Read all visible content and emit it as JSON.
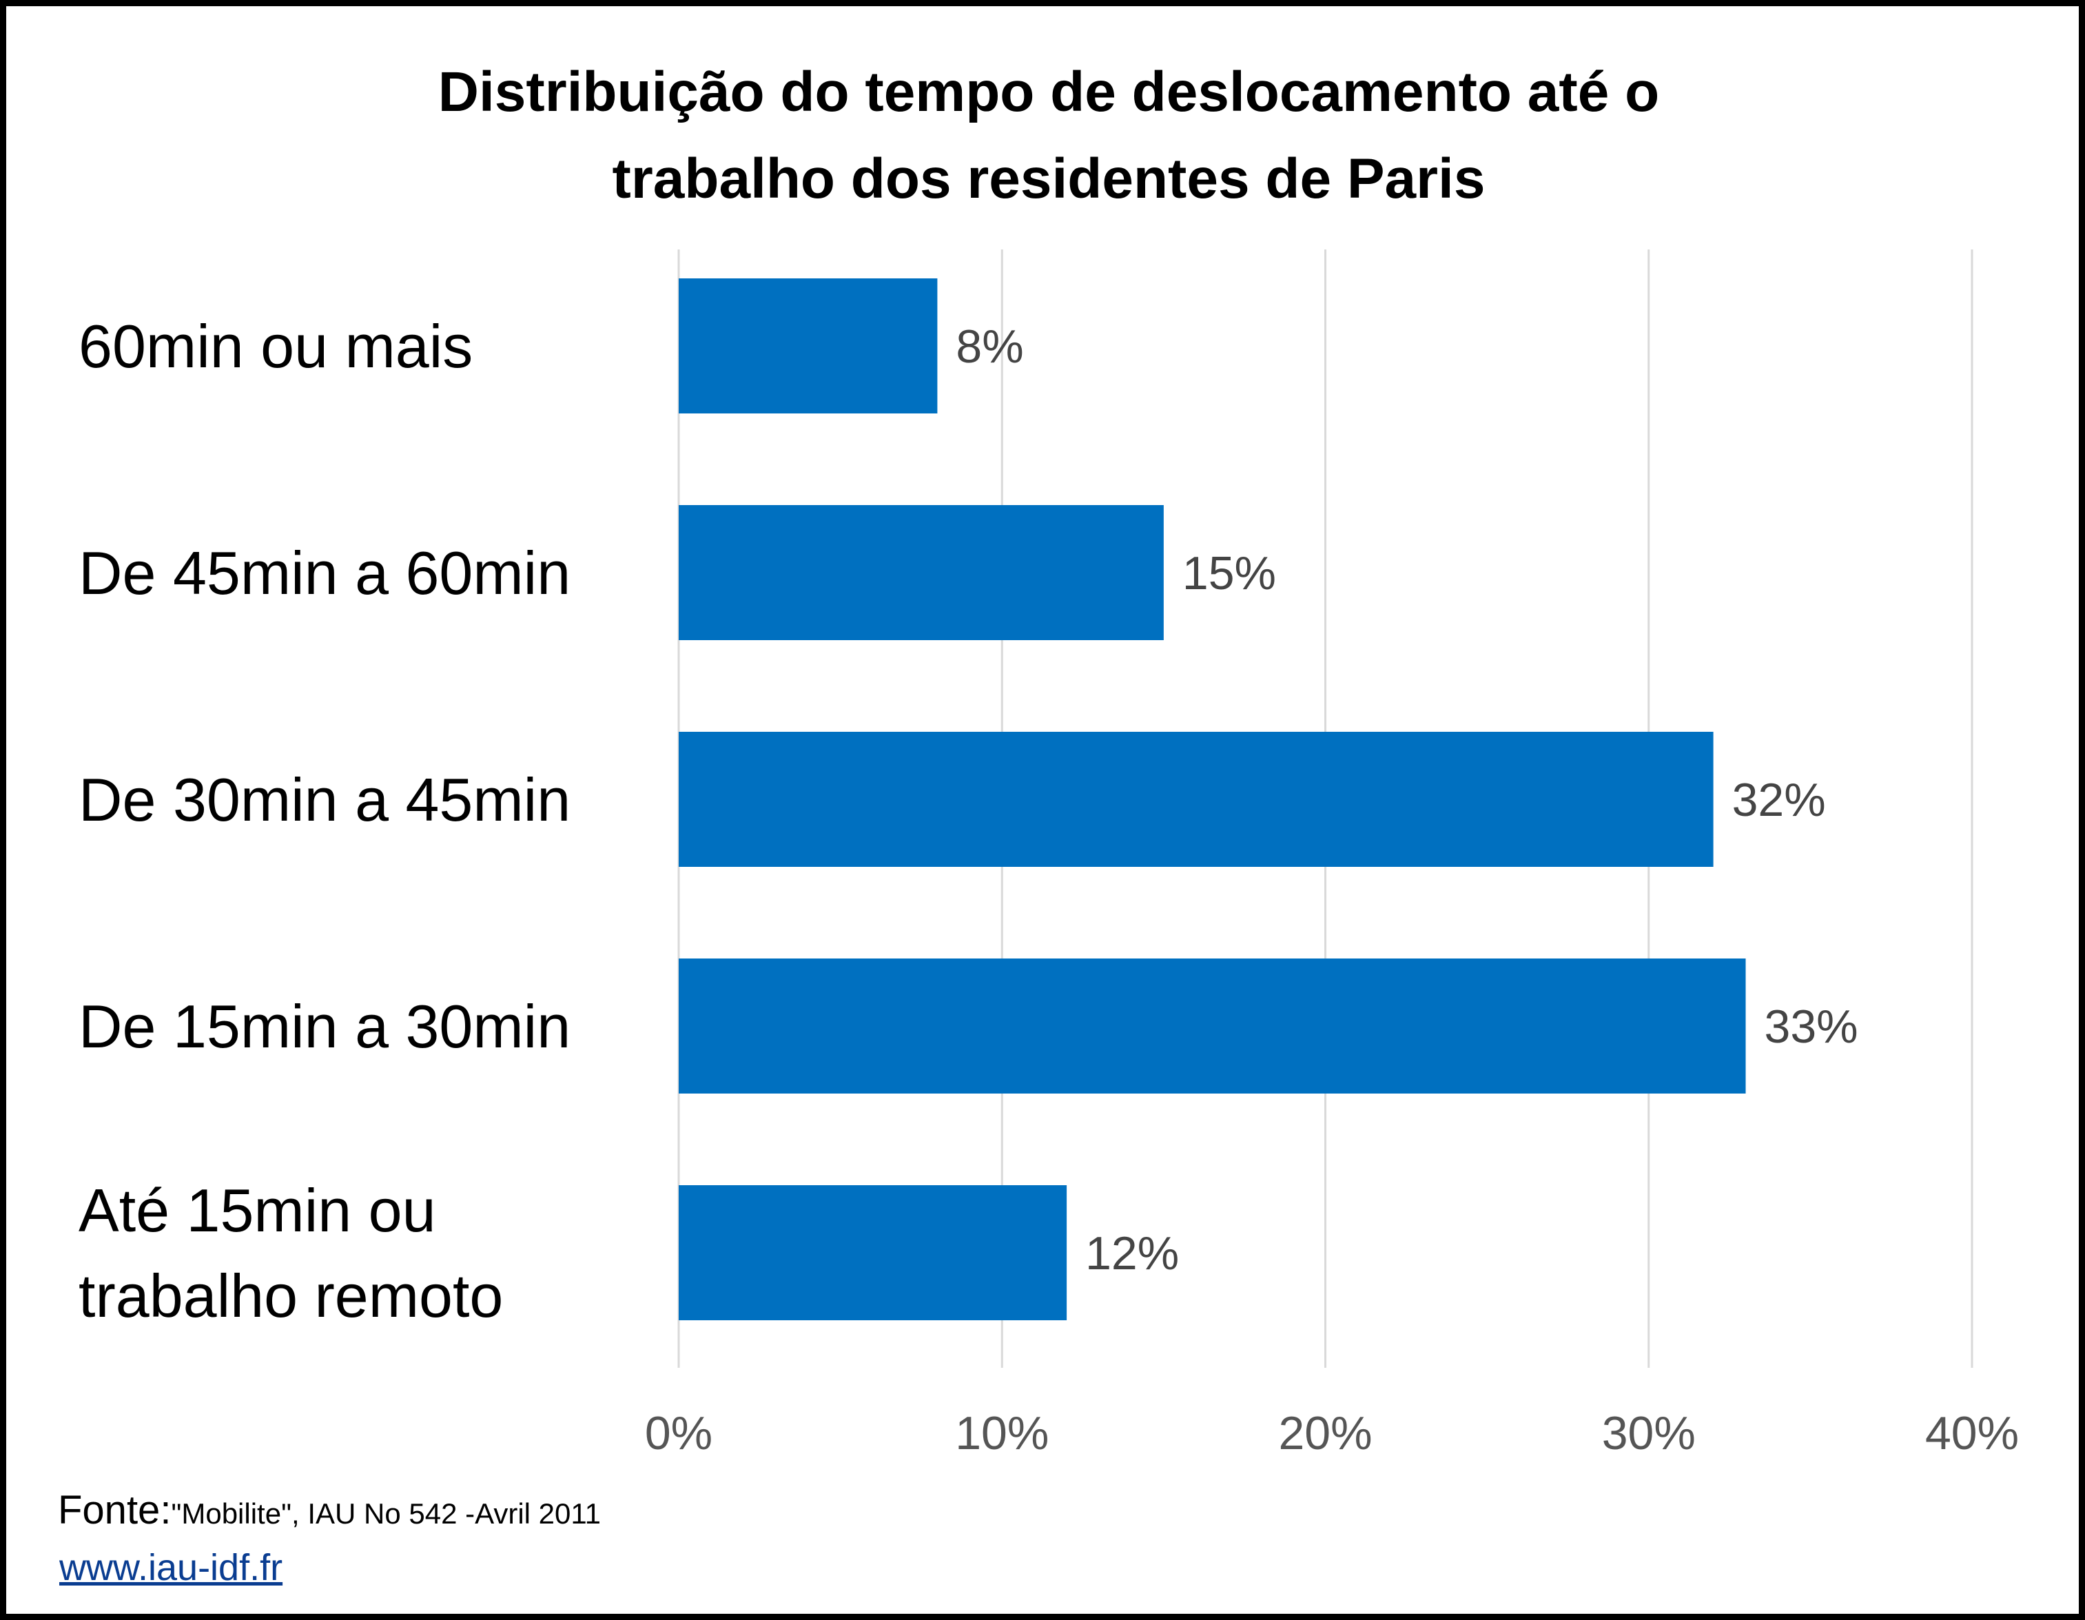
{
  "chart_data": {
    "type": "bar",
    "orientation": "horizontal",
    "title": "Distribuição do tempo de deslocamento até o trabalho dos residentes de Paris",
    "title_lines": [
      "Distribuição do tempo de deslocamento até o",
      "trabalho dos residentes de Paris"
    ],
    "categories": [
      [
        "60min ou mais"
      ],
      [
        "De 45min a 60min"
      ],
      [
        "De 30min a 45min"
      ],
      [
        "De 15min a 30min"
      ],
      [
        "Até 15min ou",
        "trabalho remoto"
      ]
    ],
    "values": [
      8,
      15,
      32,
      33,
      12
    ],
    "data_labels": [
      "8%",
      "15%",
      "32%",
      "33%",
      "12%"
    ],
    "xlim": [
      0,
      40
    ],
    "xticks": [
      0,
      10,
      20,
      30,
      40
    ],
    "xtick_labels": [
      "0%",
      "10%",
      "20%",
      "30%",
      "40%"
    ],
    "xlabel": "",
    "ylabel": "",
    "grid": "vertical",
    "legend": "none",
    "colors": {
      "bar": "#0070c0",
      "grid": "#d9d9d9",
      "tick_label": "#555555",
      "data_label": "#444444",
      "category_label": "#000000"
    }
  },
  "source": {
    "label": "Fonte:",
    "text": "\"Mobilite\", IAU No 542 -Avril 2011",
    "link": "www.iau-idf.fr"
  }
}
